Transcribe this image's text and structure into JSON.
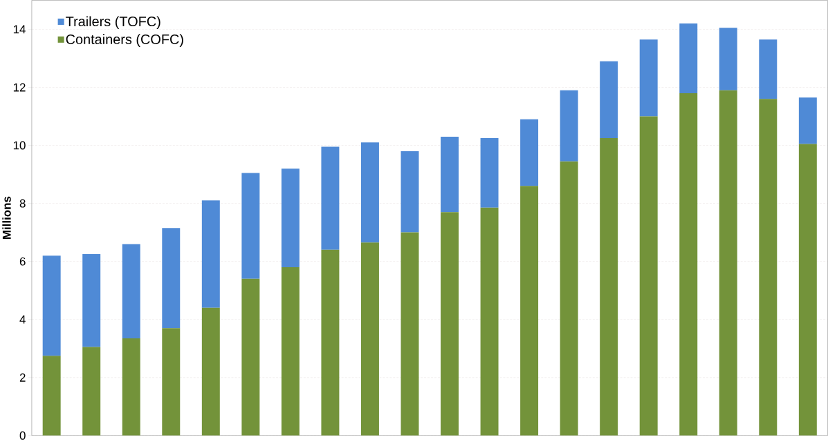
{
  "chart_data": {
    "type": "bar",
    "stacked": true,
    "ylabel": "Millions",
    "categories": [
      null,
      null,
      null,
      null,
      null,
      null,
      null,
      null,
      null,
      null,
      null,
      null,
      null,
      null,
      null,
      null,
      null,
      null,
      null,
      null
    ],
    "series": [
      {
        "name": "Containers (COFC)",
        "color": "#73933a",
        "values": [
          2.75,
          3.05,
          3.35,
          3.7,
          4.4,
          5.4,
          5.8,
          6.4,
          6.65,
          7.0,
          7.7,
          7.85,
          8.6,
          9.45,
          10.25,
          11.0,
          11.8,
          11.9,
          11.6,
          10.05
        ]
      },
      {
        "name": "Trailers (TOFC)",
        "color": "#4f8ad6",
        "values": [
          3.45,
          3.2,
          3.25,
          3.45,
          3.7,
          3.65,
          3.4,
          3.55,
          3.45,
          2.8,
          2.6,
          2.4,
          2.3,
          2.45,
          2.65,
          2.65,
          2.4,
          2.15,
          2.05,
          1.6
        ]
      }
    ],
    "ylim": [
      0,
      15
    ],
    "yticks": [
      0,
      2,
      4,
      6,
      8,
      10,
      12,
      14
    ],
    "grid": "y",
    "legend": "top left"
  }
}
